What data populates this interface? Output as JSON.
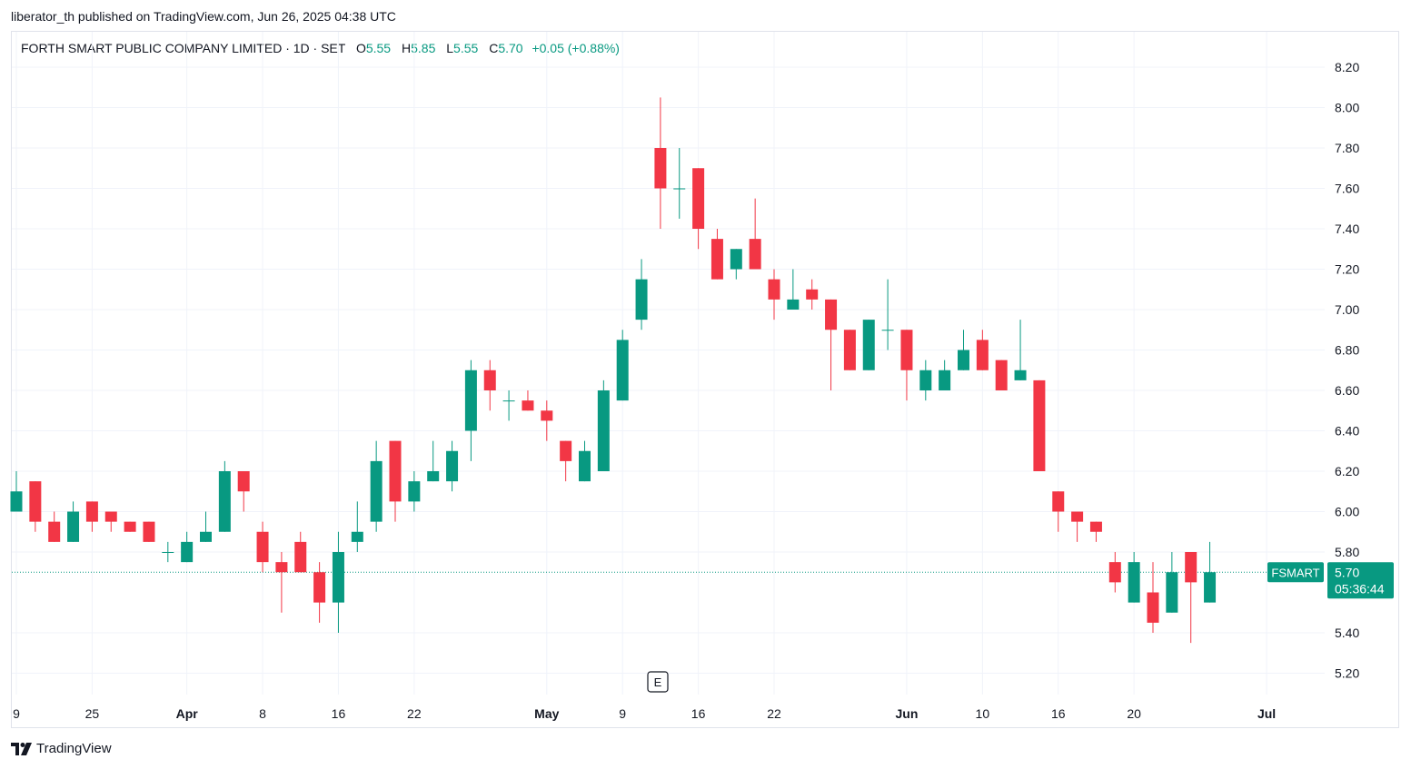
{
  "published": "liberator_th published on TradingView.com, Jun 26, 2025 04:38 UTC",
  "legend": {
    "symbol": "FORTH SMART PUBLIC COMPANY LIMITED · 1D · SET",
    "o_label": "O",
    "o": "5.55",
    "h_label": "H",
    "h": "5.85",
    "l_label": "L",
    "l": "5.55",
    "c_label": "C",
    "c": "5.70",
    "change": "+0.05 (+0.88%)"
  },
  "colors": {
    "up": "#089981",
    "down": "#f23645",
    "grid": "#f0f3fa",
    "text": "#131722"
  },
  "price_tag": {
    "ticker": "FSMART",
    "price": "5.70",
    "countdown": "05:36:44"
  },
  "event_marker": "E",
  "footer": {
    "brand": "TradingView"
  },
  "chart_data": {
    "type": "candlestick",
    "ylim": [
      5.15,
      8.3
    ],
    "y_ticks": [
      "8.20",
      "8.00",
      "7.80",
      "7.60",
      "7.40",
      "7.20",
      "7.00",
      "6.80",
      "6.60",
      "6.40",
      "6.20",
      "6.00",
      "5.80",
      "5.40",
      "5.20"
    ],
    "x_ticks": [
      {
        "label": "9",
        "bar": 0,
        "bold": false
      },
      {
        "label": "25",
        "bar": 4,
        "bold": false
      },
      {
        "label": "Apr",
        "bar": 9,
        "bold": true
      },
      {
        "label": "8",
        "bar": 13,
        "bold": false
      },
      {
        "label": "16",
        "bar": 17,
        "bold": false
      },
      {
        "label": "22",
        "bar": 21,
        "bold": false
      },
      {
        "label": "May",
        "bar": 28,
        "bold": true
      },
      {
        "label": "9",
        "bar": 32,
        "bold": false
      },
      {
        "label": "16",
        "bar": 36,
        "bold": false
      },
      {
        "label": "22",
        "bar": 40,
        "bold": false
      },
      {
        "label": "Jun",
        "bar": 47,
        "bold": true
      },
      {
        "label": "10",
        "bar": 51,
        "bold": false
      },
      {
        "label": "16",
        "bar": 55,
        "bold": false
      },
      {
        "label": "20",
        "bar": 59,
        "bold": false
      },
      {
        "label": "Jul",
        "bar": 66,
        "bold": true
      }
    ],
    "candles": [
      {
        "o": 6.0,
        "h": 6.2,
        "l": 6.0,
        "c": 6.1
      },
      {
        "o": 6.15,
        "h": 6.15,
        "l": 5.9,
        "c": 5.95
      },
      {
        "o": 5.95,
        "h": 6.0,
        "l": 5.85,
        "c": 5.85
      },
      {
        "o": 5.85,
        "h": 6.05,
        "l": 5.85,
        "c": 6.0
      },
      {
        "o": 6.05,
        "h": 6.05,
        "l": 5.9,
        "c": 5.95
      },
      {
        "o": 6.0,
        "h": 6.0,
        "l": 5.9,
        "c": 5.95
      },
      {
        "o": 5.95,
        "h": 5.95,
        "l": 5.9,
        "c": 5.9
      },
      {
        "o": 5.95,
        "h": 5.95,
        "l": 5.85,
        "c": 5.85
      },
      {
        "o": 5.8,
        "h": 5.85,
        "l": 5.75,
        "c": 5.8
      },
      {
        "o": 5.75,
        "h": 5.9,
        "l": 5.75,
        "c": 5.85
      },
      {
        "o": 5.85,
        "h": 6.0,
        "l": 5.85,
        "c": 5.9
      },
      {
        "o": 5.9,
        "h": 6.25,
        "l": 5.9,
        "c": 6.2
      },
      {
        "o": 6.2,
        "h": 6.2,
        "l": 6.0,
        "c": 6.1
      },
      {
        "o": 5.9,
        "h": 5.95,
        "l": 5.7,
        "c": 5.75
      },
      {
        "o": 5.75,
        "h": 5.8,
        "l": 5.5,
        "c": 5.7
      },
      {
        "o": 5.85,
        "h": 5.9,
        "l": 5.7,
        "c": 5.7
      },
      {
        "o": 5.7,
        "h": 5.75,
        "l": 5.45,
        "c": 5.55
      },
      {
        "o": 5.55,
        "h": 5.9,
        "l": 5.4,
        "c": 5.8
      },
      {
        "o": 5.85,
        "h": 6.05,
        "l": 5.8,
        "c": 5.9
      },
      {
        "o": 5.95,
        "h": 6.35,
        "l": 5.9,
        "c": 6.25
      },
      {
        "o": 6.35,
        "h": 6.35,
        "l": 5.95,
        "c": 6.05
      },
      {
        "o": 6.05,
        "h": 6.2,
        "l": 6.0,
        "c": 6.15
      },
      {
        "o": 6.15,
        "h": 6.35,
        "l": 6.15,
        "c": 6.2
      },
      {
        "o": 6.15,
        "h": 6.35,
        "l": 6.1,
        "c": 6.3
      },
      {
        "o": 6.4,
        "h": 6.75,
        "l": 6.25,
        "c": 6.7
      },
      {
        "o": 6.7,
        "h": 6.75,
        "l": 6.5,
        "c": 6.6
      },
      {
        "o": 6.55,
        "h": 6.6,
        "l": 6.45,
        "c": 6.55
      },
      {
        "o": 6.55,
        "h": 6.6,
        "l": 6.5,
        "c": 6.5
      },
      {
        "o": 6.5,
        "h": 6.55,
        "l": 6.35,
        "c": 6.45
      },
      {
        "o": 6.35,
        "h": 6.35,
        "l": 6.15,
        "c": 6.25
      },
      {
        "o": 6.15,
        "h": 6.35,
        "l": 6.15,
        "c": 6.3
      },
      {
        "o": 6.2,
        "h": 6.65,
        "l": 6.2,
        "c": 6.6
      },
      {
        "o": 6.55,
        "h": 6.9,
        "l": 6.55,
        "c": 6.85
      },
      {
        "o": 6.95,
        "h": 7.25,
        "l": 6.9,
        "c": 7.15
      },
      {
        "o": 7.8,
        "h": 8.05,
        "l": 7.4,
        "c": 7.6
      },
      {
        "o": 7.6,
        "h": 7.8,
        "l": 7.45,
        "c": 7.6
      },
      {
        "o": 7.7,
        "h": 7.7,
        "l": 7.3,
        "c": 7.4
      },
      {
        "o": 7.35,
        "h": 7.4,
        "l": 7.15,
        "c": 7.15
      },
      {
        "o": 7.2,
        "h": 7.3,
        "l": 7.15,
        "c": 7.3
      },
      {
        "o": 7.35,
        "h": 7.55,
        "l": 7.2,
        "c": 7.2
      },
      {
        "o": 7.15,
        "h": 7.2,
        "l": 6.95,
        "c": 7.05
      },
      {
        "o": 7.0,
        "h": 7.2,
        "l": 7.0,
        "c": 7.05
      },
      {
        "o": 7.1,
        "h": 7.15,
        "l": 7.0,
        "c": 7.05
      },
      {
        "o": 7.05,
        "h": 7.05,
        "l": 6.6,
        "c": 6.9
      },
      {
        "o": 6.9,
        "h": 6.9,
        "l": 6.7,
        "c": 6.7
      },
      {
        "o": 6.7,
        "h": 6.95,
        "l": 6.7,
        "c": 6.95
      },
      {
        "o": 6.9,
        "h": 7.15,
        "l": 6.8,
        "c": 6.9
      },
      {
        "o": 6.9,
        "h": 6.9,
        "l": 6.55,
        "c": 6.7
      },
      {
        "o": 6.6,
        "h": 6.75,
        "l": 6.55,
        "c": 6.7
      },
      {
        "o": 6.6,
        "h": 6.75,
        "l": 6.6,
        "c": 6.7
      },
      {
        "o": 6.7,
        "h": 6.9,
        "l": 6.7,
        "c": 6.8
      },
      {
        "o": 6.85,
        "h": 6.9,
        "l": 6.7,
        "c": 6.7
      },
      {
        "o": 6.75,
        "h": 6.75,
        "l": 6.6,
        "c": 6.6
      },
      {
        "o": 6.65,
        "h": 6.95,
        "l": 6.65,
        "c": 6.7
      },
      {
        "o": 6.65,
        "h": 6.65,
        "l": 6.2,
        "c": 6.2
      },
      {
        "o": 6.1,
        "h": 6.1,
        "l": 5.9,
        "c": 6.0
      },
      {
        "o": 6.0,
        "h": 6.0,
        "l": 5.85,
        "c": 5.95
      },
      {
        "o": 5.95,
        "h": 5.95,
        "l": 5.85,
        "c": 5.9
      },
      {
        "o": 5.75,
        "h": 5.8,
        "l": 5.6,
        "c": 5.65
      },
      {
        "o": 5.55,
        "h": 5.8,
        "l": 5.55,
        "c": 5.75
      },
      {
        "o": 5.6,
        "h": 5.75,
        "l": 5.4,
        "c": 5.45
      },
      {
        "o": 5.5,
        "h": 5.8,
        "l": 5.5,
        "c": 5.7
      },
      {
        "o": 5.8,
        "h": 5.8,
        "l": 5.35,
        "c": 5.65
      },
      {
        "o": 5.55,
        "h": 5.85,
        "l": 5.55,
        "c": 5.7
      }
    ]
  }
}
